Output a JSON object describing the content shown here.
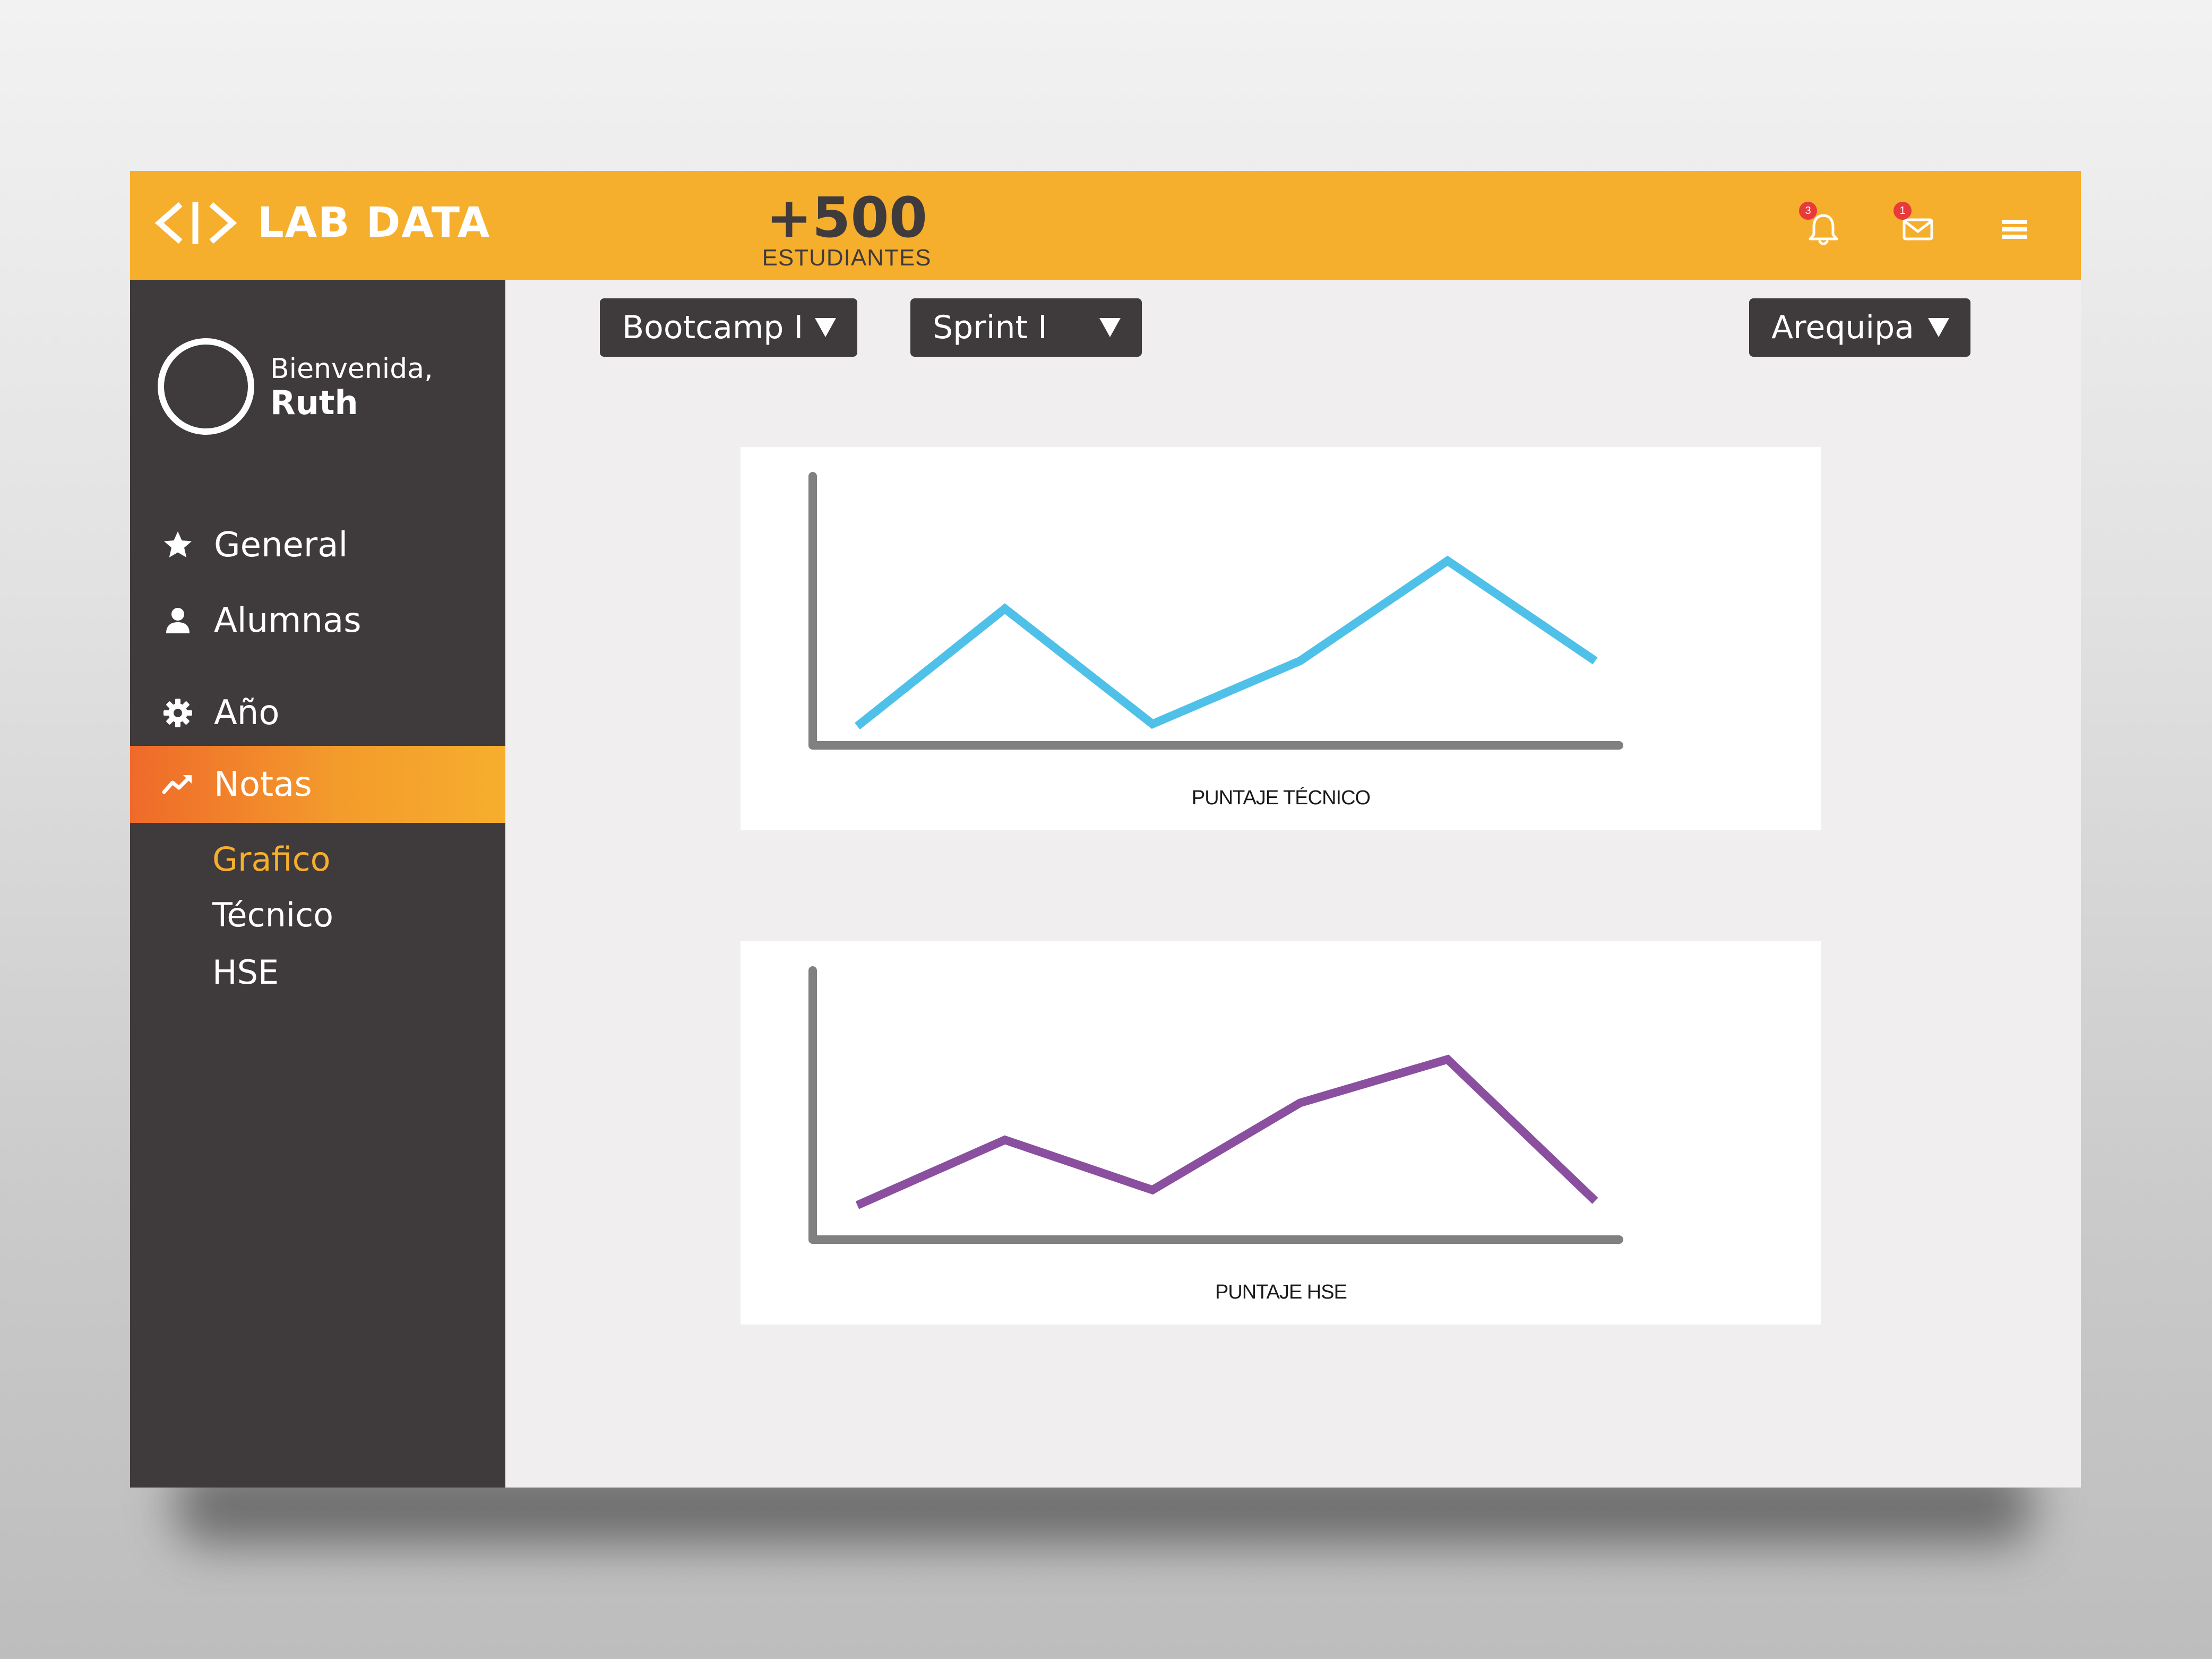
{
  "app": {
    "logo_text": "LAB DATA",
    "brand_color": "#f6ae2d",
    "dark_color": "#3f3a3c"
  },
  "header": {
    "stat_value": "+500",
    "stat_label": "ESTUDIANTES",
    "notifications": {
      "icon": "bell-icon",
      "count": "3"
    },
    "messages": {
      "icon": "mail-icon",
      "count": "1"
    },
    "menu_icon": "hamburger-menu-icon"
  },
  "profile": {
    "greeting": "Bienvenida,",
    "name": "Ruth"
  },
  "sidebar": {
    "items": [
      {
        "label": "General",
        "icon": "star-icon"
      },
      {
        "label": "Alumnas",
        "icon": "user-icon"
      },
      {
        "label": "Año",
        "icon": "gear-icon"
      },
      {
        "label": "Notas",
        "icon": "trend-icon",
        "active": true
      }
    ],
    "subitems": [
      {
        "label": "Grafico",
        "current": true
      },
      {
        "label": "Técnico"
      },
      {
        "label": "HSE"
      }
    ]
  },
  "filters": {
    "bootcamp": "Bootcamp I",
    "sprint": "Sprint I",
    "city": "Arequipa"
  },
  "chart_data": [
    {
      "type": "line",
      "title": "PUNTAJE TÉCNICO",
      "color": "#4fc1e9",
      "x": [
        0,
        1,
        2,
        3,
        4,
        5
      ],
      "values": [
        1,
        55,
        2,
        31,
        77,
        31
      ],
      "ylim": [
        0,
        100
      ]
    },
    {
      "type": "line",
      "title": "PUNTAJE HSE",
      "color": "#8a4f9f",
      "x": [
        0,
        1,
        2,
        3,
        4,
        5
      ],
      "values": [
        8,
        38,
        15,
        55,
        75,
        10
      ],
      "ylim": [
        0,
        100
      ]
    }
  ]
}
